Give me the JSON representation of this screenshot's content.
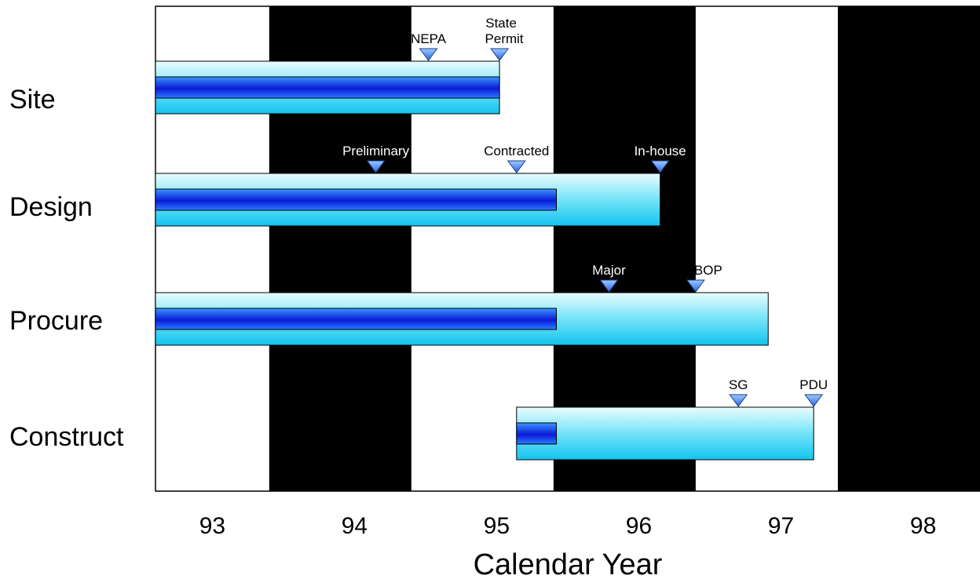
{
  "chart_data": {
    "type": "gantt",
    "xlabel": "Calendar Year",
    "x_ticks": [
      "93",
      "94",
      "95",
      "96",
      "97",
      "98"
    ],
    "xlim": [
      1992.6,
      1998.4
    ],
    "background_bands": [
      {
        "from": 1993.4,
        "to": 1994.4,
        "color": "#000000"
      },
      {
        "from": 1995.4,
        "to": 1996.4,
        "color": "#000000"
      },
      {
        "from": 1997.4,
        "to": 1998.4,
        "color": "#000000"
      }
    ],
    "tasks": [
      {
        "name": "Site",
        "start": 1992.6,
        "end": 1995.02,
        "progress_end": 1995.02,
        "milestones": [
          {
            "label": "NEPA",
            "x": 1994.52,
            "color": "#000000"
          },
          {
            "label": "State Permit",
            "x": 1995.02,
            "color": "#000000"
          }
        ]
      },
      {
        "name": "Design",
        "start": 1992.6,
        "end": 1996.15,
        "progress_end": 1995.42,
        "milestones": [
          {
            "label": "Preliminary",
            "x": 1994.15,
            "color": "#ffffff"
          },
          {
            "label": "Contracted",
            "x": 1995.14,
            "color": "#000000"
          },
          {
            "label": "In-house",
            "x": 1996.15,
            "color": "#ffffff"
          }
        ]
      },
      {
        "name": "Procure",
        "start": 1992.6,
        "end": 1996.91,
        "progress_end": 1995.42,
        "milestones": [
          {
            "label": "Major",
            "x": 1995.79,
            "color": "#ffffff"
          },
          {
            "label": "BOP",
            "x": 1996.4,
            "color": "#000000"
          }
        ]
      },
      {
        "name": "Construct",
        "start": 1995.14,
        "end": 1997.23,
        "progress_end": 1995.42,
        "milestones": [
          {
            "label": "SG",
            "x": 1996.7,
            "color": "#000000"
          },
          {
            "label": "PDU",
            "x": 1997.23,
            "color": "#000000"
          }
        ]
      }
    ]
  }
}
